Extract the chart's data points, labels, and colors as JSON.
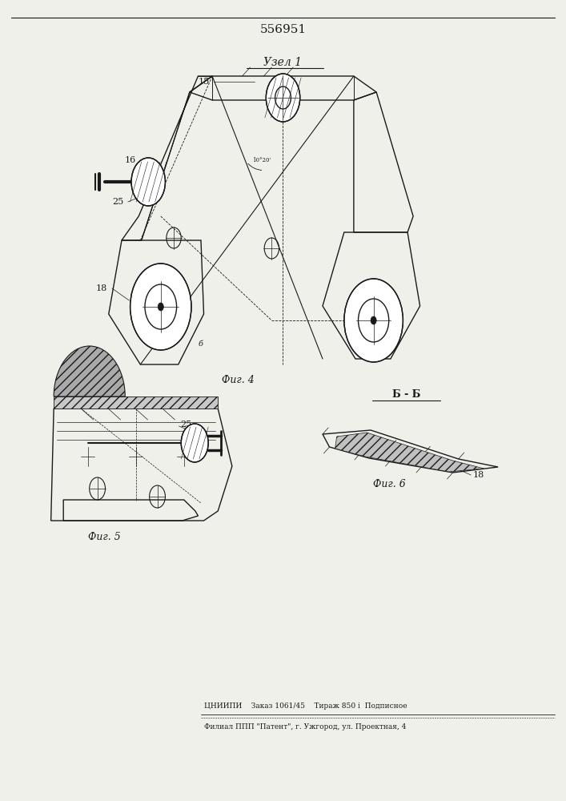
{
  "title": "556951",
  "background_color": "#f0f0eb",
  "fig_width": 7.07,
  "fig_height": 10.0,
  "patent_number": "556951",
  "uzel_label": "Узел 1",
  "fig4_label": "Фиг. 4",
  "fig5_label": "Фиг. 5",
  "fig6_label": "Фиг. 6",
  "bb_label": "Б - Б",
  "footer1": "ЦНИИПИ    Заказ 1061/45    Тираж 850 і  Подписное",
  "footer2": "Филиал ППП \"Патент\", г. Ужгород, ул. Проектная, 4"
}
